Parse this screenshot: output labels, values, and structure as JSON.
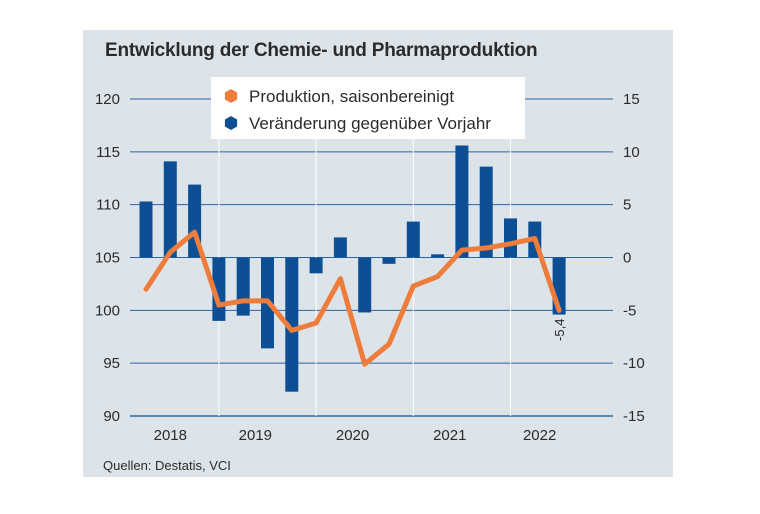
{
  "chart_data": {
    "type": "bar+line",
    "title": "Entwicklung der Chemie- und Pharmaproduktion",
    "source": "Quellen: Destatis, VCI",
    "x_labels": [
      "2018",
      "2019",
      "2020",
      "2021",
      "2022"
    ],
    "left_axis": {
      "min": 90,
      "max": 120,
      "ticks": [
        "120",
        "115",
        "110",
        "105",
        "100",
        "95",
        "90"
      ]
    },
    "right_axis": {
      "min": -15,
      "max": 15,
      "ticks": [
        "15",
        "10",
        "5",
        "0",
        "-5",
        "-10",
        "-15"
      ]
    },
    "series": [
      {
        "name": "Produktion, saisonbereinigt",
        "type": "line",
        "axis": "left",
        "color": "#ee7d3b",
        "values": [
          102,
          105.5,
          107.4,
          100.5,
          100.9,
          100.9,
          98.1,
          98.8,
          103,
          94.9,
          96.8,
          102.3,
          103.2,
          105.7,
          105.9,
          106.3,
          106.8,
          100
        ]
      },
      {
        "name": "Veränderung gegenüber Vorjahr",
        "type": "bar",
        "axis": "right",
        "color": "#0d4f94",
        "values": [
          5.3,
          9.1,
          6.9,
          -6,
          -5.5,
          -8.6,
          -12.7,
          -1.5,
          1.9,
          -5.2,
          -0.6,
          3.4,
          0.3,
          10.6,
          8.6,
          3.7,
          3.4,
          -5.4
        ]
      }
    ],
    "annotation": {
      "text": "-5,4",
      "index": 17
    },
    "legend_position": "top-center"
  }
}
